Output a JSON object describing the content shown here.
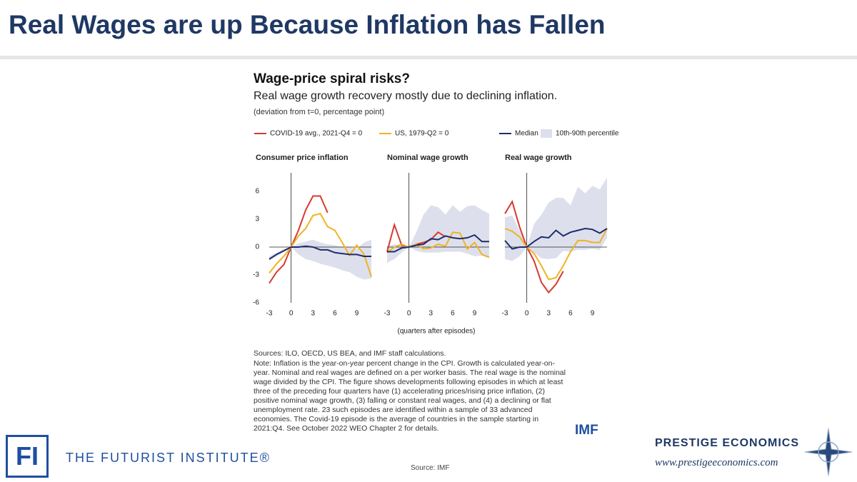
{
  "header": {
    "title": "Real Wages are up Because Inflation has Fallen"
  },
  "figure": {
    "title": "Wage-price spiral risks?",
    "subtitle": "Real wage growth recovery mostly due to declining inflation.",
    "units": "(deviation from t=0, percentage point)",
    "xlabel": "(quarters after episodes)",
    "sources": "Sources: ILO, OECD, US BEA, and IMF staff calculations.",
    "note": "Note: Inflation is the year-on-year percent change in the CPI. Growth is calculated year-on-year. Nominal and real wages are defined on a per worker basis. The real wage is the nominal wage divided by the CPI. The figure shows developments following episodes in which at least three of the preceding four quarters have (1) accelerating prices/rising price inflation, (2) positive nominal wage growth, (3) falling or constant real wages, and (4) a declining or flat unemployment rate. 23 such episodes are identified within a sample of 33 advanced economies. The Covid-19 episode is the average of countries in the sample starting in 2021:Q4. See October 2022 WEO Chapter 2 for details.",
    "logo": "IMF"
  },
  "footer": {
    "fi": "FI",
    "institute": "THE FUTURIST INSTITUTE®",
    "source": "Source: IMF",
    "company": "PRESTIGE ECONOMICS",
    "url": "www.prestigeeconomics.com"
  },
  "chart_data": [
    {
      "type": "line",
      "title": "Consumer price inflation",
      "x": [
        -3,
        -2,
        -1,
        0,
        1,
        2,
        3,
        4,
        5,
        6,
        7,
        8,
        9,
        10,
        11
      ],
      "xlim": [
        -3,
        11
      ],
      "xticks": [
        -3,
        0,
        3,
        6,
        9
      ],
      "ylim": [
        -6,
        8
      ],
      "yticks": [
        -6,
        -3,
        0,
        3,
        6
      ],
      "series": [
        {
          "name": "COVID-19 avg., 2021-Q4 = 0",
          "color": "#d63a2f",
          "values": [
            -3.9,
            -2.7,
            -1.9,
            0,
            1.8,
            4.0,
            5.5,
            5.5,
            3.7,
            null,
            null,
            null,
            null,
            null,
            null
          ]
        },
        {
          "name": "US, 1979-Q2 = 0",
          "color": "#f0b323",
          "values": [
            -2.8,
            -1.8,
            -1.0,
            0,
            1.2,
            2.0,
            3.4,
            3.6,
            2.2,
            1.8,
            0.5,
            -0.9,
            0.2,
            -0.8,
            -3.2
          ]
        },
        {
          "name": "Median",
          "color": "#1f2d6b",
          "values": [
            -1.3,
            -0.8,
            -0.4,
            0,
            0,
            0.1,
            0,
            -0.3,
            -0.3,
            -0.6,
            -0.7,
            -0.8,
            -0.8,
            -1.0,
            -1.0
          ]
        }
      ],
      "band": {
        "name": "10th-90th percentile",
        "color": "#dde0ec",
        "lower": [
          -1.5,
          -1.0,
          -0.5,
          0,
          -0.8,
          -1.3,
          -1.5,
          -1.8,
          -2.0,
          -2.2,
          -2.5,
          -2.7,
          -3.2,
          -3.5,
          -3.4
        ],
        "upper": [
          -1.0,
          -0.6,
          -0.2,
          0,
          0.4,
          0.6,
          0.8,
          0.5,
          0.3,
          0.2,
          0,
          0,
          -0.2,
          0.5,
          0.8
        ]
      }
    },
    {
      "type": "line",
      "title": "Nominal wage growth",
      "x": [
        -3,
        -2,
        -1,
        0,
        1,
        2,
        3,
        4,
        5,
        6,
        7,
        8,
        9,
        10,
        11
      ],
      "xlim": [
        -3,
        11
      ],
      "xticks": [
        -3,
        0,
        3,
        6,
        9
      ],
      "ylim": [
        -6,
        8
      ],
      "series": [
        {
          "name": "COVID-19 avg., 2021-Q4 = 0",
          "color": "#d63a2f",
          "values": [
            -0.5,
            2.4,
            0.2,
            0,
            0.3,
            0.5,
            0.8,
            1.6,
            1.1,
            null,
            null,
            null,
            null,
            null,
            null
          ]
        },
        {
          "name": "US, 1979-Q2 = 0",
          "color": "#f0b323",
          "values": [
            -0.6,
            0,
            0.3,
            0,
            0.3,
            -0.2,
            -0.1,
            0.3,
            0.1,
            1.6,
            1.5,
            -0.2,
            0.5,
            -0.8,
            -1.1
          ]
        },
        {
          "name": "Median",
          "color": "#1f2d6b",
          "values": [
            -0.5,
            -0.5,
            -0.1,
            0,
            0.2,
            0.3,
            0.9,
            0.8,
            1.2,
            1.0,
            0.9,
            1.0,
            1.3,
            0.6,
            0.6
          ]
        }
      ],
      "band": {
        "name": "10th-90th percentile",
        "color": "#dde0ec",
        "lower": [
          -1.7,
          -1.3,
          -0.6,
          0,
          -0.4,
          -0.6,
          -0.6,
          -0.6,
          -0.5,
          -0.5,
          -0.5,
          -0.7,
          -1.0,
          -0.9,
          -1.2
        ],
        "upper": [
          0.1,
          0.3,
          0.2,
          0,
          1.6,
          3.5,
          4.5,
          4.3,
          3.5,
          4.5,
          3.8,
          4.4,
          4.5,
          4.0,
          3.6
        ]
      }
    },
    {
      "type": "line",
      "title": "Real wage growth",
      "x": [
        -3,
        -2,
        -1,
        0,
        1,
        2,
        3,
        4,
        5,
        6,
        7,
        8,
        9,
        10,
        11
      ],
      "xlim": [
        -3,
        11
      ],
      "xticks": [
        -3,
        0,
        3,
        6,
        9
      ],
      "ylim": [
        -6,
        8
      ],
      "series": [
        {
          "name": "COVID-19 avg., 2021-Q4 = 0",
          "color": "#d63a2f",
          "values": [
            3.6,
            4.9,
            2.2,
            0,
            -1.5,
            -3.8,
            -4.9,
            -4.0,
            -2.6,
            null,
            null,
            null,
            null,
            null,
            null
          ]
        },
        {
          "name": "US, 1979-Q2 = 0",
          "color": "#f0b323",
          "values": [
            2.0,
            1.7,
            1.1,
            0,
            -0.7,
            -2.0,
            -3.5,
            -3.3,
            -2.0,
            -0.5,
            0.7,
            0.7,
            0.5,
            0.5,
            2.0
          ]
        },
        {
          "name": "Median",
          "color": "#1f2d6b",
          "values": [
            0.7,
            -0.2,
            0,
            0,
            0.6,
            1.1,
            1.0,
            1.8,
            1.2,
            1.6,
            1.8,
            2.0,
            1.9,
            1.5,
            2.0
          ]
        }
      ],
      "band": {
        "name": "10th-90th percentile",
        "color": "#dde0ec",
        "lower": [
          -1.3,
          -1.5,
          -1.0,
          0,
          -0.6,
          -1.2,
          -1.3,
          -1.2,
          -0.4,
          -0.5,
          -0.3,
          -0.3,
          -0.2,
          -0.3,
          1.0
        ],
        "upper": [
          3.2,
          3.4,
          1.8,
          0,
          2.5,
          3.5,
          4.8,
          5.3,
          5.3,
          4.5,
          6.5,
          5.8,
          6.6,
          6.2,
          7.5
        ]
      }
    }
  ]
}
